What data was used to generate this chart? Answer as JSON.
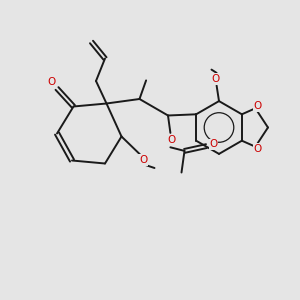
{
  "bg_color": "#e5e5e5",
  "bond_color": "#1a1a1a",
  "oxygen_color": "#cc0000",
  "bond_lw": 1.4,
  "figsize": [
    3.0,
    3.0
  ],
  "dpi": 100,
  "xlim": [
    0,
    10
  ],
  "ylim": [
    0,
    10
  ],
  "font_size": 7.5
}
